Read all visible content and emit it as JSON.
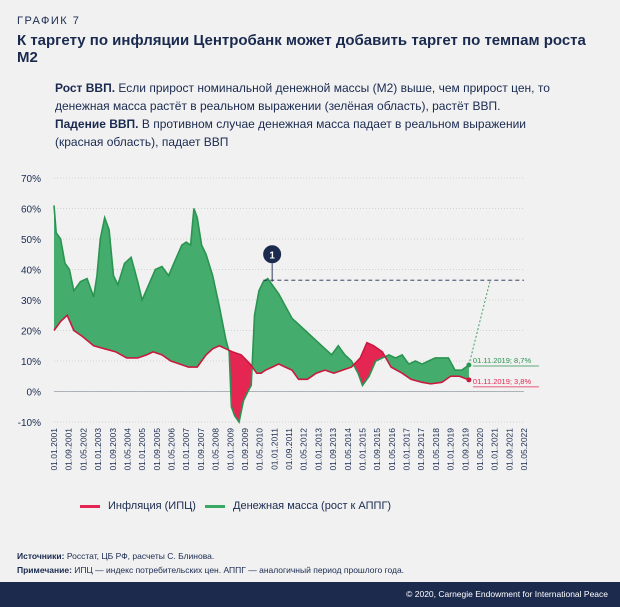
{
  "figure_label": "ГРАФИК 7",
  "title": "К таргету по инфляции Центробанк может добавить таргет по темпам роста М2",
  "note": {
    "growth_lead": "Рост ВВП.",
    "growth_text": "Если прирост номинальной денежной массы (М2) выше, чем прирост цен, то денежная масса растёт в реальном выражении (зелёная область), растёт ВВП.",
    "decline_lead": "Падение ВВП.",
    "decline_text": "В противном случае денежная масса падает в реальном выражении (красная область), падает ВВП"
  },
  "legend": {
    "inflation": "Инфляция (ИПЦ)",
    "money": "Денежная масса (рост к АППГ)"
  },
  "sources": {
    "sources_label": "Источники:",
    "sources_text": "Росстат, ЦБ РФ, расчеты С. Блинова.",
    "note_label": "Примечание:",
    "note_text": "ИПЦ — индекс потребительских цен. АППГ — аналогичный период прошлого года."
  },
  "footer": "© 2020, Carnegie Endowment for International Peace",
  "colors": {
    "green": "#3aa865",
    "green_line": "#2b9450",
    "red": "#e52552",
    "red_line": "#c9193f",
    "navy": "#1c2a4e"
  },
  "chart_data": {
    "type": "area",
    "ylim": [
      -10,
      70
    ],
    "yticks": [
      "-10%",
      "0%",
      "10%",
      "20%",
      "30%",
      "40%",
      "50%",
      "60%",
      "70%"
    ],
    "xlim": [
      2001.0,
      2022.33
    ],
    "xticks": [
      "01.01.2001",
      "01.09.2001",
      "01.05.2002",
      "01.01.2003",
      "01.09.2003",
      "01.05.2004",
      "01.01.2005",
      "01.09.2005",
      "01.05.2006",
      "01.01.2007",
      "01.09.2007",
      "01.05.2008",
      "01.01.2009",
      "01.09.2009",
      "01.05.2010",
      "01.01.2011",
      "01.09.2011",
      "01.05.2012",
      "01.01.2013",
      "01.09.2013",
      "01.05.2014",
      "01.01.2015",
      "01.09.2015",
      "01.05.2016",
      "01.01.2017",
      "01.09.2017",
      "01.05.2018",
      "01.01.2019",
      "01.09.2019",
      "01.05.2020",
      "01.01.2021",
      "01.09.2021",
      "01.05.2022"
    ],
    "reference_line": 36.5,
    "marker": {
      "label": "1",
      "x": 2010.9,
      "y": 45
    },
    "annotations": [
      {
        "text": "01.11.2019; 8,7%",
        "color": "green",
        "x": 2019.83,
        "y": 8.7
      },
      {
        "text": "01.11.2019; 3,8%",
        "color": "red",
        "x": 2019.83,
        "y": 3.8
      }
    ],
    "series": [
      {
        "name": "Денежная масса (рост к АППГ)",
        "x": [
          2001.0,
          2001.1,
          2001.3,
          2001.5,
          2001.7,
          2001.9,
          2002.2,
          2002.5,
          2002.8,
          2002.95,
          2003.1,
          2003.3,
          2003.5,
          2003.7,
          2003.9,
          2004.2,
          2004.5,
          2004.8,
          2005.0,
          2005.3,
          2005.6,
          2005.9,
          2006.2,
          2006.5,
          2006.8,
          2007.0,
          2007.2,
          2007.35,
          2007.5,
          2007.7,
          2007.9,
          2008.2,
          2008.5,
          2008.8,
          2008.95,
          2009.05,
          2009.2,
          2009.4,
          2009.6,
          2009.8,
          2009.95,
          2010.1,
          2010.3,
          2010.5,
          2010.7,
          2010.9,
          2011.2,
          2011.5,
          2011.8,
          2012.1,
          2012.4,
          2012.7,
          2013.0,
          2013.3,
          2013.6,
          2013.9,
          2014.2,
          2014.5,
          2014.8,
          2015.0,
          2015.3,
          2015.6,
          2015.9,
          2016.2,
          2016.5,
          2016.8,
          2017.1,
          2017.4,
          2017.7,
          2018.0,
          2018.3,
          2018.6,
          2018.9,
          2019.2,
          2019.5,
          2019.83
        ],
        "values": [
          61,
          52,
          50,
          42,
          40,
          33,
          36,
          37,
          31,
          38,
          50,
          57,
          53,
          38,
          35,
          42,
          44,
          36,
          30,
          35,
          40,
          41,
          38,
          43,
          48,
          49,
          48,
          60,
          57,
          48,
          45,
          38,
          28,
          17,
          13,
          -5,
          -8,
          -10,
          -3,
          0,
          2,
          25,
          33,
          36,
          37,
          35,
          32,
          28,
          24,
          22,
          20,
          18,
          16,
          14,
          12,
          15,
          12,
          10,
          6,
          2,
          5,
          10,
          11,
          12,
          11,
          12,
          9,
          10,
          9,
          10,
          11,
          11,
          11,
          7,
          7,
          8.7
        ]
      },
      {
        "name": "Инфляция (ИПЦ)",
        "x": [
          2001.0,
          2001.3,
          2001.6,
          2001.9,
          2002.3,
          2002.8,
          2003.3,
          2003.8,
          2004.3,
          2004.8,
          2005.2,
          2005.5,
          2005.9,
          2006.3,
          2006.7,
          2007.1,
          2007.5,
          2007.9,
          2008.2,
          2008.5,
          2008.8,
          2009.1,
          2009.5,
          2009.9,
          2010.2,
          2010.4,
          2010.6,
          2010.9,
          2011.2,
          2011.5,
          2011.8,
          2012.1,
          2012.5,
          2012.9,
          2013.3,
          2013.7,
          2014.1,
          2014.5,
          2014.9,
          2015.2,
          2015.5,
          2015.9,
          2016.3,
          2016.8,
          2017.2,
          2017.7,
          2018.1,
          2018.6,
          2019.0,
          2019.4,
          2019.83
        ],
        "values": [
          20,
          23,
          25,
          20,
          18,
          15,
          14,
          13,
          11,
          11,
          12,
          13,
          12,
          10,
          9,
          8,
          8,
          12,
          14,
          15,
          14,
          13,
          12,
          9,
          6,
          6,
          7,
          8,
          9,
          8,
          7,
          4,
          4,
          6,
          7,
          6,
          7,
          8,
          11,
          16,
          15,
          13,
          8,
          6,
          4,
          3,
          2.5,
          3,
          5,
          5,
          3.8
        ]
      }
    ]
  }
}
